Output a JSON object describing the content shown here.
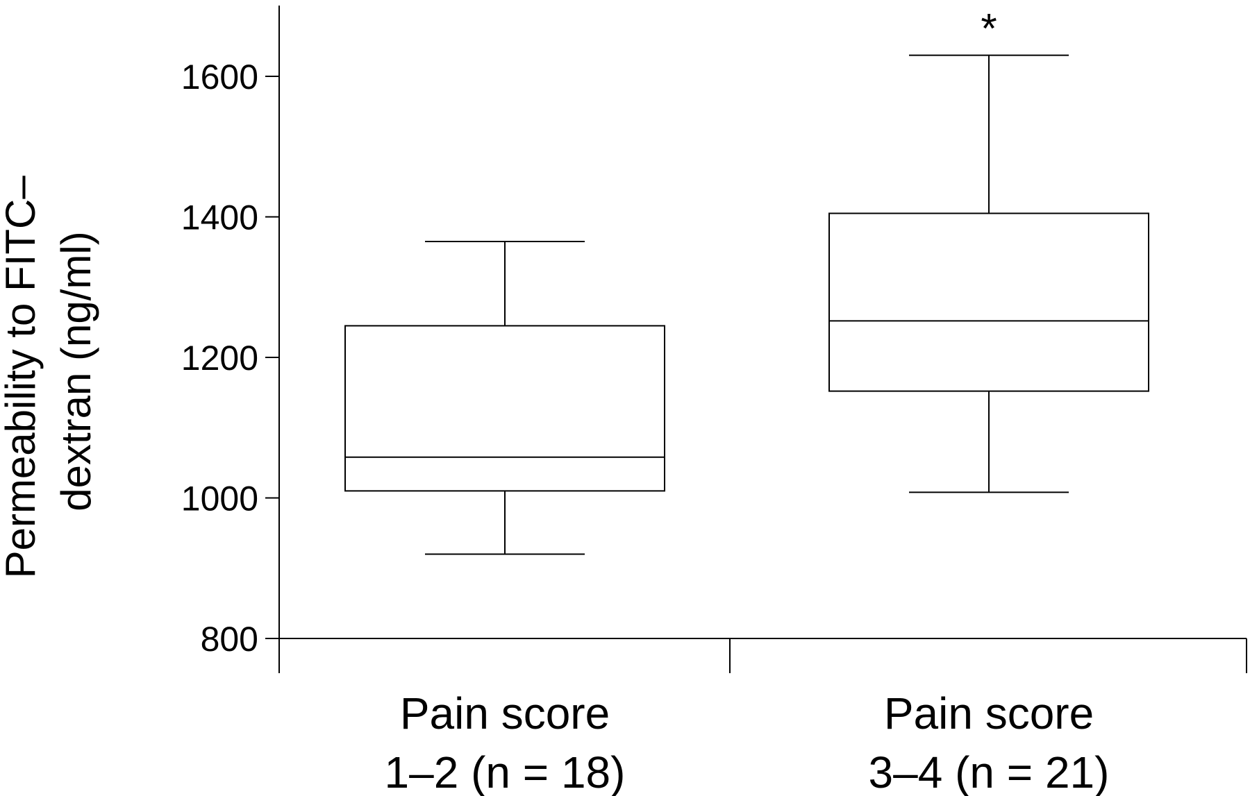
{
  "chart_data": {
    "type": "box",
    "title": "",
    "ylabel_lines": [
      "Permeability to FITC–",
      "dextran (ng/ml)"
    ],
    "xlabel": "",
    "ylim": [
      800,
      1700
    ],
    "yticks": [
      800,
      1000,
      1200,
      1400,
      1600
    ],
    "grid": false,
    "categories": [
      {
        "label_lines": [
          "Pain score",
          "1–2 (n = 18)"
        ],
        "whisker_low": 920,
        "q1": 1010,
        "median": 1058,
        "q3": 1245,
        "whisker_high": 1365,
        "annotation": ""
      },
      {
        "label_lines": [
          "Pain score",
          "3–4 (n = 21)"
        ],
        "whisker_low": 1008,
        "q1": 1152,
        "median": 1252,
        "q3": 1405,
        "whisker_high": 1630,
        "annotation": "*"
      }
    ]
  }
}
